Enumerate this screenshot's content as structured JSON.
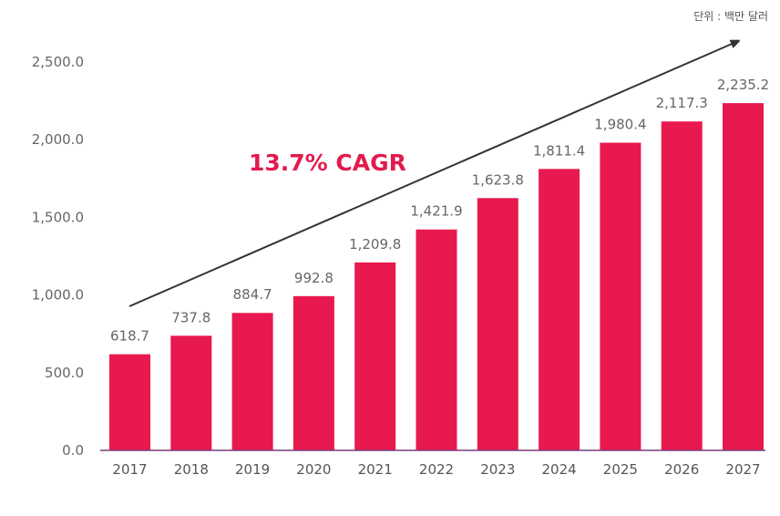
{
  "unit_label": "단위 : 백만 달러",
  "annotation": "13.7% CAGR",
  "colors": {
    "bar": "#e8194e",
    "annotation": "#e21b4d",
    "axis": "#7a3b7a",
    "arrow": "#333333"
  },
  "chart_data": {
    "type": "bar",
    "categories": [
      "2017",
      "2018",
      "2019",
      "2020",
      "2021",
      "2022",
      "2023",
      "2024",
      "2025",
      "2026",
      "2027"
    ],
    "values": [
      618.7,
      737.8,
      884.7,
      992.8,
      1209.8,
      1421.9,
      1623.8,
      1811.4,
      1980.4,
      2117.3,
      2235.2
    ],
    "value_labels": [
      "618.7",
      "737.8",
      "884.7",
      "992.8",
      "1,209.8",
      "1,421.9",
      "1,623.8",
      "1,811.4",
      "1,980.4",
      "2,117.3",
      "2,235.2"
    ],
    "yticks": [
      "0.0",
      "500.0",
      "1,000.0",
      "1,500.0",
      "2,000.0",
      "2,500.0"
    ],
    "ytick_values": [
      0,
      500,
      1000,
      1500,
      2000,
      2500
    ],
    "ylim": [
      0,
      2500
    ],
    "grid": false,
    "title": "",
    "xlabel": "",
    "ylabel": ""
  }
}
